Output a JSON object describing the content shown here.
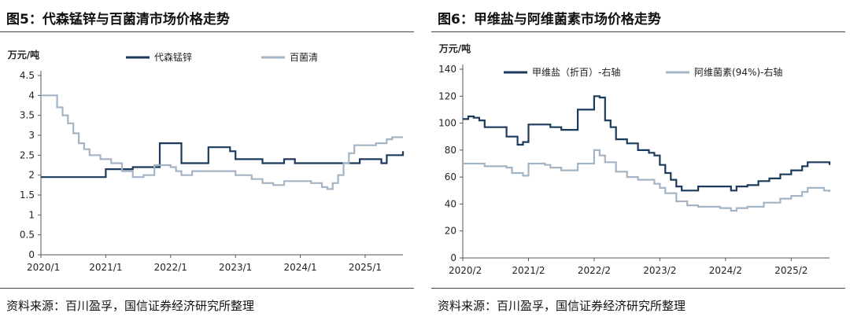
{
  "colors": {
    "navy": "#1b3a5c",
    "gray": "#a3b4c4",
    "axis": "#555555"
  },
  "chart_data": [
    {
      "type": "line",
      "title": "图5：代森锰锌与百菌清市场价格走势",
      "unit": "万元/吨",
      "source": "资料来源：百川盈孚，国信证券经济研究所整理",
      "xlabel": "",
      "ylabel": "",
      "x_ticks": [
        "2020/1",
        "2021/1",
        "2022/1",
        "2023/1",
        "2024/1",
        "2025/1"
      ],
      "y_ticks": [
        "0",
        "0.5",
        "1",
        "1.5",
        "2",
        "2.5",
        "3",
        "3.5",
        "4",
        "4.5"
      ],
      "ylim": [
        0,
        4.5
      ],
      "xlim": [
        "2020-01",
        "2025-08"
      ],
      "grid": false,
      "legend_position": "top",
      "series": [
        {
          "name": "代森锰锌",
          "color": "navy",
          "width": 2.2,
          "points": [
            [
              "2020-01",
              1.95
            ],
            [
              "2020-11",
              1.95
            ],
            [
              "2021-01",
              2.15
            ],
            [
              "2021-06",
              2.2
            ],
            [
              "2021-10",
              2.2
            ],
            [
              "2021-11",
              2.8
            ],
            [
              "2022-03",
              2.3
            ],
            [
              "2022-07",
              2.3
            ],
            [
              "2022-08",
              2.7
            ],
            [
              "2022-12",
              2.6
            ],
            [
              "2023-01",
              2.4
            ],
            [
              "2023-06",
              2.3
            ],
            [
              "2023-09",
              2.3
            ],
            [
              "2023-10",
              2.4
            ],
            [
              "2023-12",
              2.3
            ],
            [
              "2024-11",
              2.3
            ],
            [
              "2024-12",
              2.4
            ],
            [
              "2025-03",
              2.4
            ],
            [
              "2025-04",
              2.3
            ],
            [
              "2025-05",
              2.5
            ],
            [
              "2025-07",
              2.5
            ],
            [
              "2025-08",
              2.6
            ]
          ]
        },
        {
          "name": "百菌清",
          "color": "gray",
          "width": 2.2,
          "points": [
            [
              "2020-01",
              4.0
            ],
            [
              "2020-03",
              4.0
            ],
            [
              "2020-04",
              3.7
            ],
            [
              "2020-05",
              3.5
            ],
            [
              "2020-06",
              3.3
            ],
            [
              "2020-07",
              3.05
            ],
            [
              "2020-08",
              2.8
            ],
            [
              "2020-09",
              2.65
            ],
            [
              "2020-10",
              2.5
            ],
            [
              "2020-12",
              2.4
            ],
            [
              "2021-02",
              2.3
            ],
            [
              "2021-04",
              2.1
            ],
            [
              "2021-06",
              1.95
            ],
            [
              "2021-08",
              2.0
            ],
            [
              "2021-10",
              2.25
            ],
            [
              "2022-01",
              2.2
            ],
            [
              "2022-02",
              2.1
            ],
            [
              "2022-03",
              2.0
            ],
            [
              "2022-05",
              2.1
            ],
            [
              "2022-12",
              2.1
            ],
            [
              "2023-01",
              2.0
            ],
            [
              "2023-04",
              1.9
            ],
            [
              "2023-06",
              1.8
            ],
            [
              "2023-08",
              1.75
            ],
            [
              "2023-10",
              1.85
            ],
            [
              "2024-03",
              1.8
            ],
            [
              "2024-05",
              1.7
            ],
            [
              "2024-06",
              1.65
            ],
            [
              "2024-07",
              1.8
            ],
            [
              "2024-08",
              2.0
            ],
            [
              "2024-09",
              2.3
            ],
            [
              "2024-10",
              2.55
            ],
            [
              "2024-11",
              2.75
            ],
            [
              "2025-03",
              2.8
            ],
            [
              "2025-05",
              2.9
            ],
            [
              "2025-06",
              2.95
            ],
            [
              "2025-08",
              2.95
            ]
          ]
        }
      ]
    },
    {
      "type": "line",
      "title": "图6：甲维盐与阿维菌素市场价格走势",
      "unit": "万元/吨",
      "source": "资料来源：百川盈孚，国信证券经济研究所整理",
      "xlabel": "",
      "ylabel": "",
      "x_ticks": [
        "2020/2",
        "2021/2",
        "2022/2",
        "2023/2",
        "2024/2",
        "2025/2"
      ],
      "y_ticks": [
        "0",
        "20",
        "40",
        "60",
        "80",
        "100",
        "120",
        "140"
      ],
      "ylim": [
        0,
        140
      ],
      "xlim": [
        "2020-02",
        "2025-09"
      ],
      "grid": false,
      "legend_position": "top",
      "series": [
        {
          "name": "甲维盐（折百）-右轴",
          "color": "navy",
          "width": 2.2,
          "points": [
            [
              "2020-02",
              103
            ],
            [
              "2020-03",
              105
            ],
            [
              "2020-04",
              104
            ],
            [
              "2020-05",
              102
            ],
            [
              "2020-06",
              97
            ],
            [
              "2020-09",
              97
            ],
            [
              "2020-10",
              90
            ],
            [
              "2020-12",
              84
            ],
            [
              "2021-01",
              86
            ],
            [
              "2021-02",
              99
            ],
            [
              "2021-05",
              99
            ],
            [
              "2021-06",
              97
            ],
            [
              "2021-08",
              95
            ],
            [
              "2021-10",
              95
            ],
            [
              "2021-11",
              110
            ],
            [
              "2022-01",
              110
            ],
            [
              "2022-02",
              120
            ],
            [
              "2022-03",
              119
            ],
            [
              "2022-04",
              102
            ],
            [
              "2022-05",
              97
            ],
            [
              "2022-06",
              88
            ],
            [
              "2022-08",
              85
            ],
            [
              "2022-10",
              80
            ],
            [
              "2022-12",
              78
            ],
            [
              "2023-01",
              76
            ],
            [
              "2023-02",
              69
            ],
            [
              "2023-03",
              63
            ],
            [
              "2023-04",
              58
            ],
            [
              "2023-05",
              53
            ],
            [
              "2023-06",
              50
            ],
            [
              "2023-08",
              50
            ],
            [
              "2023-09",
              53
            ],
            [
              "2024-02",
              53
            ],
            [
              "2024-03",
              50
            ],
            [
              "2024-04",
              53
            ],
            [
              "2024-06",
              54
            ],
            [
              "2024-08",
              57
            ],
            [
              "2024-10",
              59
            ],
            [
              "2024-12",
              62
            ],
            [
              "2025-02",
              65
            ],
            [
              "2025-04",
              68
            ],
            [
              "2025-05",
              71
            ],
            [
              "2025-07",
              71
            ],
            [
              "2025-09",
              69
            ]
          ]
        },
        {
          "name": "阿维菌素(94%)-右轴",
          "color": "gray",
          "width": 2.2,
          "points": [
            [
              "2020-02",
              70
            ],
            [
              "2020-05",
              70
            ],
            [
              "2020-06",
              68
            ],
            [
              "2020-10",
              67
            ],
            [
              "2020-11",
              63
            ],
            [
              "2021-01",
              61
            ],
            [
              "2021-02",
              70
            ],
            [
              "2021-05",
              69
            ],
            [
              "2021-06",
              67
            ],
            [
              "2021-08",
              65
            ],
            [
              "2021-10",
              65
            ],
            [
              "2021-11",
              70
            ],
            [
              "2022-01",
              70
            ],
            [
              "2022-02",
              80
            ],
            [
              "2022-03",
              76
            ],
            [
              "2022-04",
              71
            ],
            [
              "2022-06",
              64
            ],
            [
              "2022-08",
              60
            ],
            [
              "2022-10",
              58
            ],
            [
              "2023-01",
              55
            ],
            [
              "2023-02",
              52
            ],
            [
              "2023-03",
              48
            ],
            [
              "2023-05",
              42
            ],
            [
              "2023-07",
              39
            ],
            [
              "2023-09",
              38
            ],
            [
              "2024-01",
              37
            ],
            [
              "2024-03",
              35
            ],
            [
              "2024-04",
              37
            ],
            [
              "2024-06",
              38
            ],
            [
              "2024-09",
              41
            ],
            [
              "2024-12",
              44
            ],
            [
              "2025-02",
              46
            ],
            [
              "2025-04",
              49
            ],
            [
              "2025-05",
              52
            ],
            [
              "2025-07",
              52
            ],
            [
              "2025-08",
              50
            ],
            [
              "2025-09",
              49
            ]
          ]
        }
      ]
    }
  ]
}
